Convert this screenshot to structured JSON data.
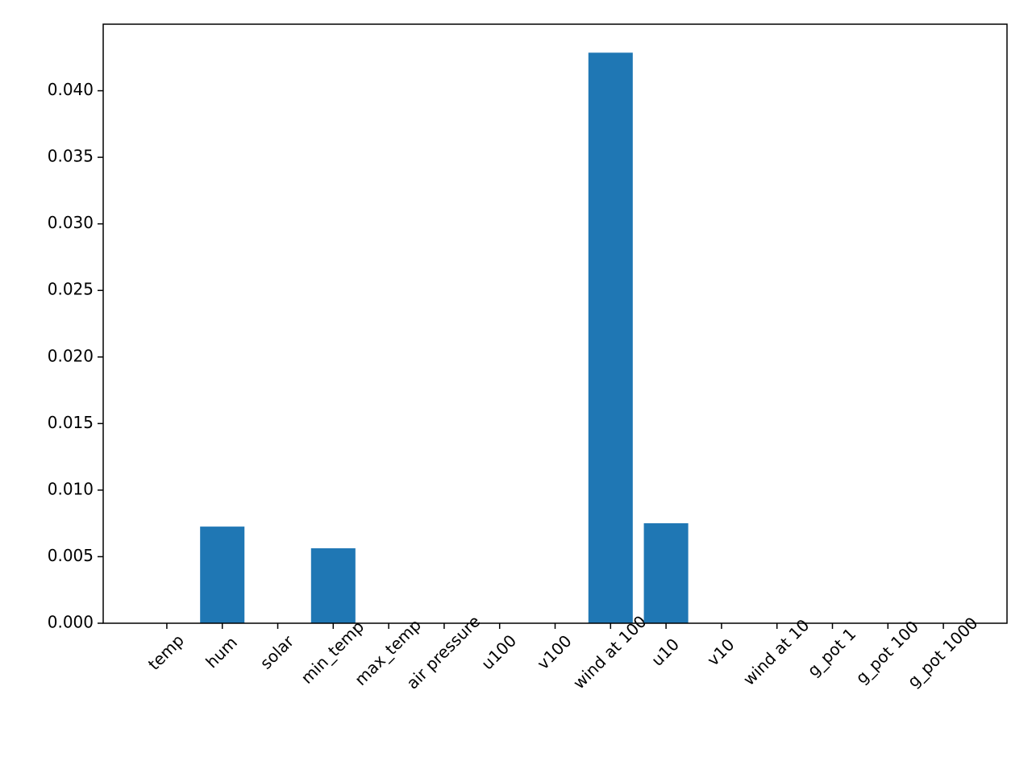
{
  "chart_data": {
    "type": "bar",
    "categories": [
      "temp",
      "hum",
      "solar",
      "min_temp",
      "max_temp",
      "air pressure",
      "u100",
      "v100",
      "wind at 100",
      "u10",
      "v10",
      "wind at 10",
      "g_pot 1",
      "g_pot 100",
      "g_pot 1000"
    ],
    "values": [
      0,
      0.00726,
      0,
      0.00563,
      0,
      0,
      0,
      0,
      0.04286,
      0.00751,
      0,
      0,
      0,
      0,
      0
    ],
    "color": "#1f77b4",
    "ylim": [
      0,
      0.045
    ],
    "yticks": [
      {
        "value": 0,
        "label": "0.000"
      },
      {
        "value": 0.005,
        "label": "0.005"
      },
      {
        "value": 0.01,
        "label": "0.010"
      },
      {
        "value": 0.015,
        "label": "0.015"
      },
      {
        "value": 0.02,
        "label": "0.020"
      },
      {
        "value": 0.025,
        "label": "0.025"
      },
      {
        "value": 0.03,
        "label": "0.030"
      },
      {
        "value": 0.035,
        "label": "0.035"
      },
      {
        "value": 0.04,
        "label": "0.040"
      }
    ],
    "grid": false
  }
}
